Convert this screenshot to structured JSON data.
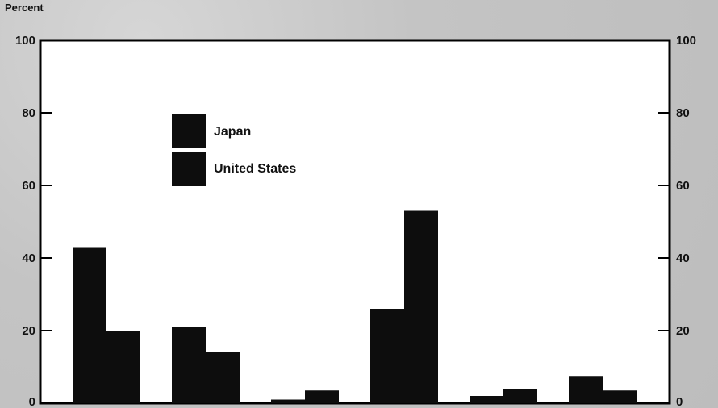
{
  "chart_data": {
    "type": "bar",
    "ylabel": "Percent",
    "ylim": [
      0,
      100
    ],
    "y_ticks": [
      "0",
      "20",
      "40",
      "60",
      "80",
      "100"
    ],
    "right_axis_ticks": true,
    "grid": false,
    "legend_position": "top-left",
    "categories": [
      "",
      "",
      "",
      "",
      "",
      ""
    ],
    "series": [
      {
        "name": "Japan",
        "values": [
          43,
          21,
          1,
          26,
          2,
          7.5
        ]
      },
      {
        "name": "United States",
        "values": [
          20,
          14,
          3.5,
          53,
          4,
          3.5
        ]
      }
    ],
    "colors": {
      "bar": "#0d0d0d",
      "plot_background": "#ffffff",
      "page_background": "#c9c9c9"
    }
  }
}
